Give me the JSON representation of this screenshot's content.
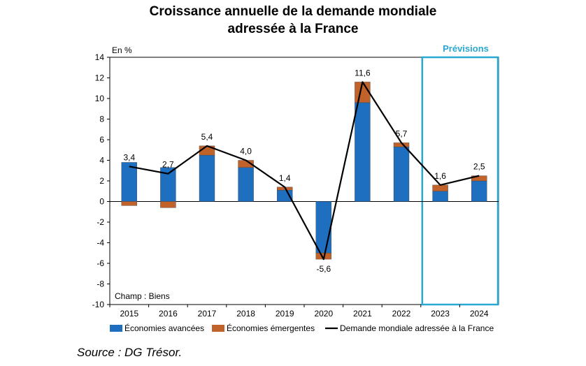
{
  "chart_data": {
    "type": "bar",
    "title_line1": "Croissance annuelle de la demande mondiale",
    "title_line2": "adressée à la France",
    "unit_label": "En %",
    "note": "Champ : Biens",
    "forecast_label": "Prévisions",
    "source": "Source : DG Trésor.",
    "categories": [
      "2015",
      "2016",
      "2017",
      "2018",
      "2019",
      "2020",
      "2021",
      "2022",
      "2023",
      "2024"
    ],
    "ylim": [
      -10,
      14
    ],
    "yticks": [
      14,
      12,
      10,
      8,
      6,
      4,
      2,
      0,
      -2,
      -4,
      -6,
      -8,
      -10
    ],
    "series": [
      {
        "name": "Économies avancées",
        "kind": "bar",
        "color": "#1F6FC1",
        "values": [
          3.8,
          3.3,
          4.5,
          3.3,
          1.1,
          -5.0,
          9.6,
          5.3,
          1.0,
          2.0
        ]
      },
      {
        "name": "Économies émergentes",
        "kind": "bar",
        "color": "#C0622A",
        "values": [
          -0.4,
          -0.6,
          0.9,
          0.7,
          0.3,
          -0.6,
          2.0,
          0.4,
          0.6,
          0.5
        ]
      },
      {
        "name": "Demande mondiale adressée à la France",
        "kind": "line",
        "color": "#000000",
        "values": [
          3.4,
          2.7,
          5.4,
          4.0,
          1.4,
          -5.6,
          11.6,
          5.7,
          1.6,
          2.5
        ]
      }
    ],
    "data_labels": [
      "3,4",
      "2,7",
      "5,4",
      "4,0",
      "1,4",
      "-5,6",
      "11,6",
      "5,7",
      "1,6",
      "2,5"
    ],
    "forecast_highlight": {
      "from": "2023",
      "to": "2024",
      "color": "#29A8D3"
    },
    "grid": false,
    "legend_position": "bottom"
  }
}
